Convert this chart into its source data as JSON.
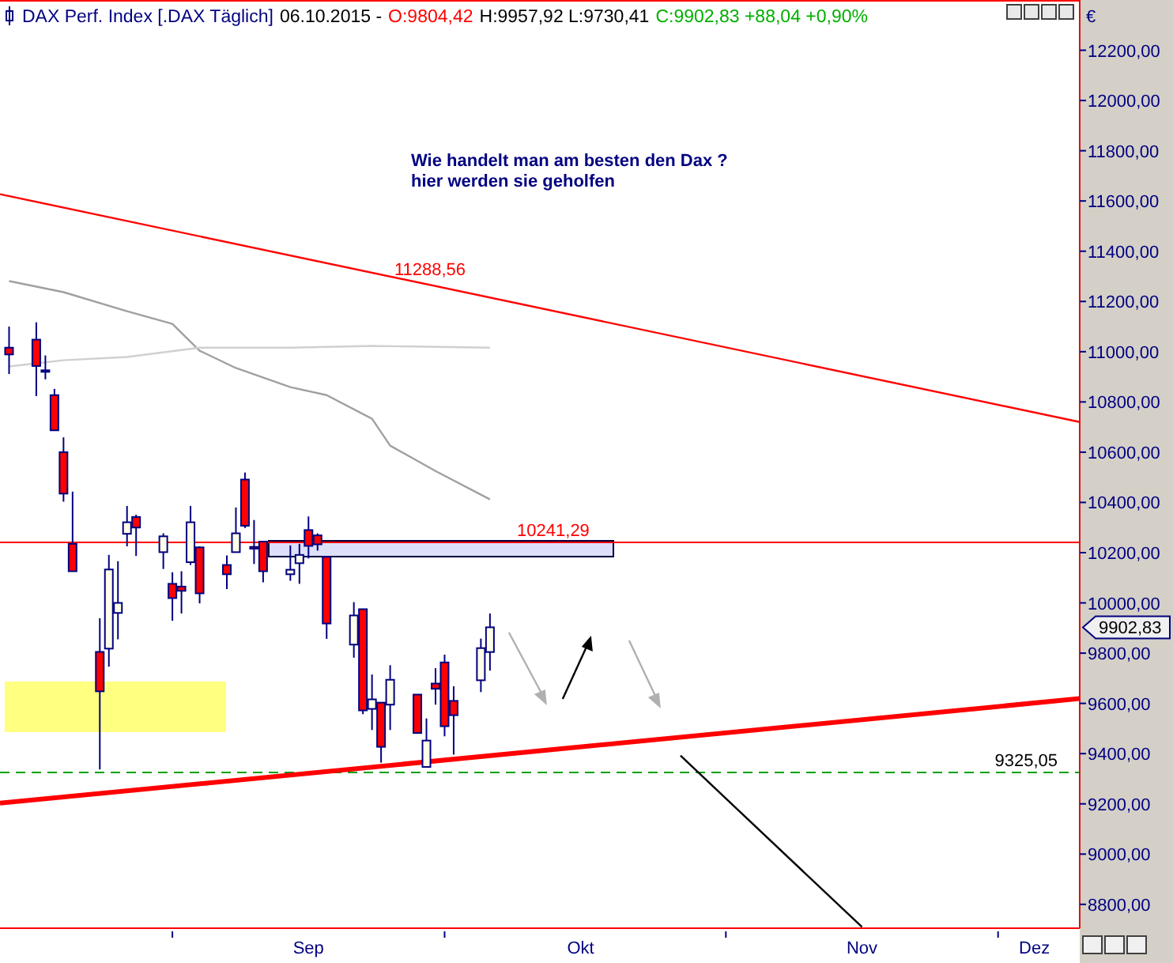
{
  "chart_data": {
    "type": "candlestick",
    "title": "DAX Perf. Index [.DAX  Täglich]",
    "subtitle": "06.10.2015 -",
    "annotations": [
      "O:9804,42",
      "H:9957,92 L:9730,41",
      "C:9902,83 +88,04 +0,90%",
      "Wie handelt man am besten  den Dax ?",
      "hier werden sie geholfen",
      "11288,56",
      "9902,83",
      "€"
    ],
    "x": [
      "2015-08-14",
      "2015-08-17",
      "2015-08-18",
      "2015-08-19",
      "2015-08-20",
      "2015-08-21",
      "2015-08-24",
      "2015-08-25",
      "2015-08-26",
      "2015-08-27",
      "2015-08-28",
      "2015-08-31",
      "2015-09-01",
      "2015-09-02",
      "2015-09-03",
      "2015-09-04",
      "2015-09-07",
      "2015-09-08",
      "2015-09-09",
      "2015-09-10",
      "2015-09-11",
      "2015-09-14",
      "2015-09-15",
      "2015-09-16",
      "2015-09-17",
      "2015-09-18",
      "2015-09-21",
      "2015-09-22",
      "2015-09-23",
      "2015-09-24",
      "2015-09-25",
      "2015-09-28",
      "2015-09-29",
      "2015-09-30",
      "2015-10-01",
      "2015-10-02",
      "2015-10-05",
      "2015-10-06"
    ],
    "ohlc": [
      [
        11016,
        11100,
        10911,
        10989
      ],
      [
        11048,
        11117,
        10823,
        10943
      ],
      [
        10920,
        10985,
        10890,
        10926
      ],
      [
        10827,
        10852,
        10687,
        10687
      ],
      [
        10600,
        10659,
        10403,
        10435
      ],
      [
        10235,
        10443,
        10126,
        10126
      ],
      [
        9805,
        9939,
        9337,
        9648
      ],
      [
        9818,
        10191,
        9746,
        10133
      ],
      [
        9960,
        10166,
        9855,
        10000
      ],
      [
        10275,
        10386,
        10225,
        10321
      ],
      [
        10342,
        10351,
        10187,
        10300
      ],
      [
        10202,
        10277,
        10135,
        10265
      ],
      [
        10076,
        10122,
        9929,
        10019
      ],
      [
        10065,
        10126,
        9958,
        10048
      ],
      [
        10162,
        10386,
        10151,
        10321
      ],
      [
        10221,
        10225,
        9998,
        10038
      ],
      [
        10151,
        10189,
        10055,
        10114
      ],
      [
        10202,
        10380,
        10202,
        10277
      ],
      [
        10491,
        10519,
        10298,
        10307
      ],
      [
        10223,
        10330,
        10155,
        10216
      ],
      [
        10244,
        10244,
        10082,
        10126
      ],
      [
        10114,
        10229,
        10088,
        10132
      ],
      [
        10158,
        10235,
        10076,
        10191
      ],
      [
        10290,
        10344,
        10177,
        10227
      ],
      [
        10269,
        10277,
        10208,
        10233
      ],
      [
        10183,
        10183,
        9857,
        9918
      ],
      [
        9834,
        10003,
        9782,
        9950
      ],
      [
        9975,
        9975,
        9557,
        9572
      ],
      [
        9578,
        9715,
        9494,
        9616
      ],
      [
        9603,
        9603,
        9364,
        9427
      ],
      [
        9595,
        9752,
        9494,
        9694
      ],
      [
        9635,
        9635,
        9482,
        9482
      ],
      [
        9347,
        9540,
        9347,
        9452
      ],
      [
        9679,
        9740,
        9595,
        9658
      ],
      [
        9763,
        9794,
        9469,
        9509
      ],
      [
        9610,
        9668,
        9396,
        9553
      ],
      [
        9692,
        9858,
        9645,
        9820
      ],
      [
        9804.42,
        9957.92,
        9730.41,
        9902.83
      ]
    ],
    "series": [
      {
        "type": "line",
        "color": "#a0a0a0",
        "x": [
          "2015-08-14",
          "2015-08-20",
          "2015-08-27",
          "2015-09-01",
          "2015-09-04",
          "2015-09-08",
          "2015-09-14",
          "2015-09-18",
          "2015-09-23",
          "2015-09-25",
          "2015-09-30",
          "2015-10-06"
        ],
        "values": [
          11281,
          11237,
          11161,
          11111,
          11004,
          10935,
          10859,
          10827,
          10733,
          10626,
          10525,
          10412
        ]
      },
      {
        "type": "line",
        "color": "#d0d0d0",
        "x": [
          "2015-08-14",
          "2015-08-20",
          "2015-08-27",
          "2015-09-04",
          "2015-09-14",
          "2015-09-23",
          "2015-10-06"
        ],
        "values": [
          10941,
          10966,
          10979,
          11016,
          11016,
          11023,
          11016
        ]
      },
      {
        "type": "line",
        "color": "#ff0000",
        "x": [
          "2015-08-13",
          "2015-12-10"
        ],
        "values": [
          11627,
          10720
        ]
      },
      {
        "type": "line",
        "color": "#ff0000",
        "x": [
          "2015-08-13",
          "2015-12-10"
        ],
        "values": [
          9203,
          9619
        ]
      },
      {
        "type": "line",
        "color": "#000000",
        "x": [
          "2015-10-27",
          "2015-11-16"
        ],
        "values": [
          9392,
          8710
        ]
      }
    ],
    "ref_lines": [
      {
        "axis": "y",
        "value": 10241.29,
        "label": "10241,29",
        "color": "#ff0000",
        "line_style": "solid"
      },
      {
        "axis": "y",
        "value": 9325.05,
        "label": "9325,05",
        "color": "#00a000",
        "line_style": "dashed"
      }
    ],
    "xlim": [
      "2015-08-13",
      "2015-12-10"
    ],
    "xticks": [
      {
        "value": "2015-09-01",
        "label": null
      },
      {
        "value": "2015-09-16",
        "label": "Sep"
      },
      {
        "value": "2015-10-01",
        "label": null
      },
      {
        "value": "2015-10-16",
        "label": "Okt"
      },
      {
        "value": "2015-11-01",
        "label": null
      },
      {
        "value": "2015-11-16",
        "label": "Nov"
      },
      {
        "value": "2015-12-01",
        "label": null
      },
      {
        "value": "2015-12-05",
        "label": "Dez"
      }
    ],
    "ylim": [
      8705,
      12400
    ],
    "yticks": [
      {
        "value": 8800,
        "label": "8800,00"
      },
      {
        "value": 9000,
        "label": "9000,00"
      },
      {
        "value": 9200,
        "label": "9200,00"
      },
      {
        "value": 9400,
        "label": "9400,00"
      },
      {
        "value": 9600,
        "label": "9600,00"
      },
      {
        "value": 9800,
        "label": "9800,00"
      },
      {
        "value": 10000,
        "label": "10000,00"
      },
      {
        "value": 10200,
        "label": "10200,00"
      },
      {
        "value": 10400,
        "label": "10400,00"
      },
      {
        "value": 10600,
        "label": "10600,00"
      },
      {
        "value": 10800,
        "label": "10800,00"
      },
      {
        "value": 11000,
        "label": "11000,00"
      },
      {
        "value": 11200,
        "label": "11200,00"
      },
      {
        "value": 11400,
        "label": "11400,00"
      },
      {
        "value": 11600,
        "label": "11600,00"
      },
      {
        "value": 11800,
        "label": "11800,00"
      },
      {
        "value": 12000,
        "label": "12000,00"
      },
      {
        "value": 12200,
        "label": "12200,00"
      }
    ],
    "tick_labels": "xy"
  }
}
